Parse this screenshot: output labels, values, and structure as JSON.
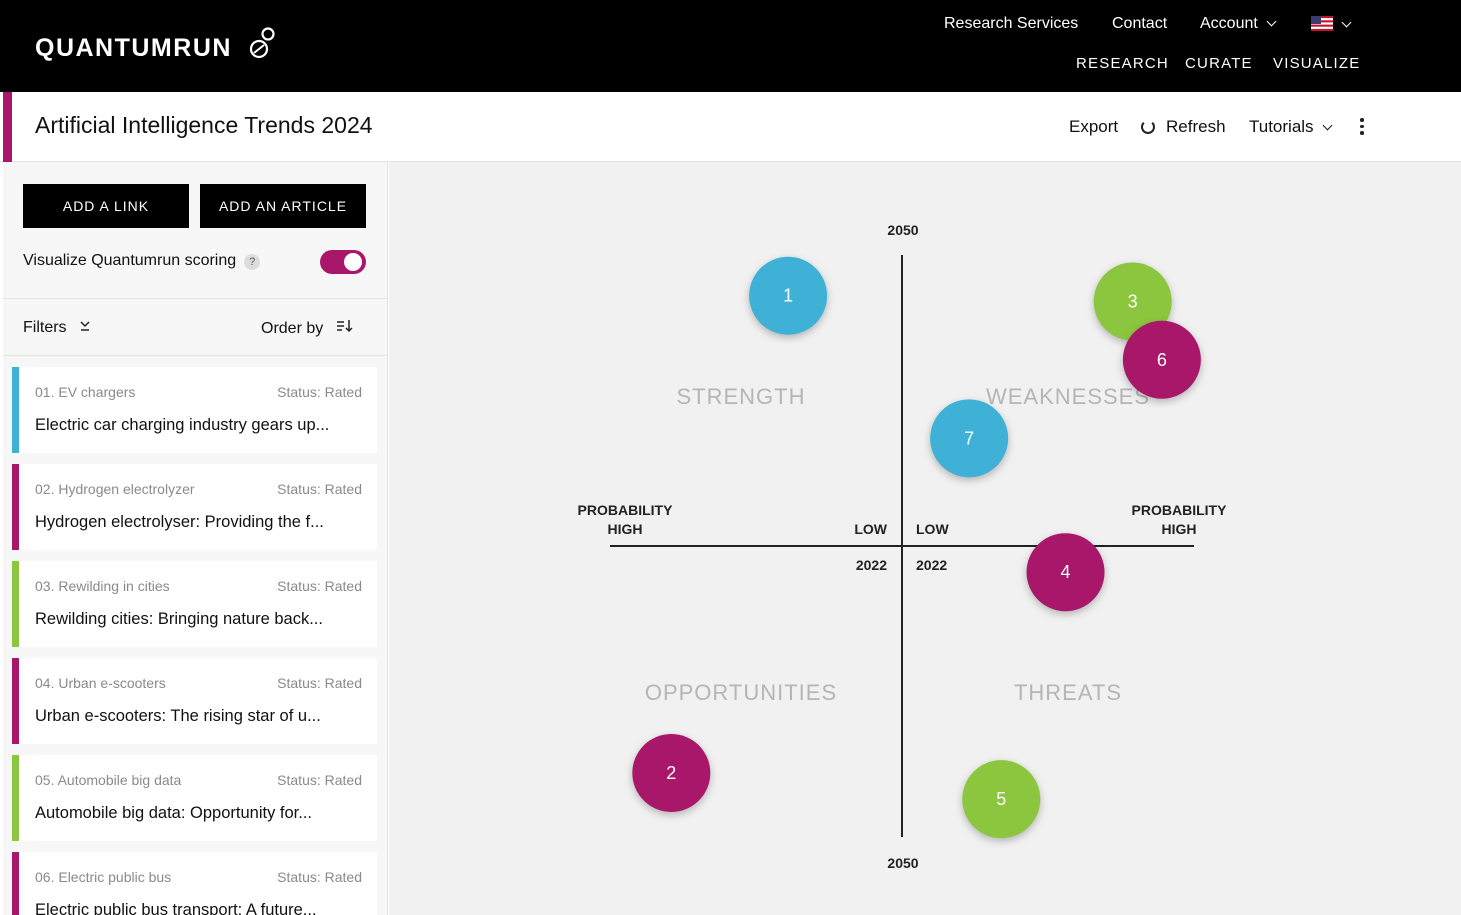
{
  "header": {
    "logo_text": "QUANTUMRUN",
    "nav_top": [
      "Research Services",
      "Contact",
      "Account"
    ],
    "nav_main": [
      "RESEARCH",
      "CURATE",
      "VISUALIZE"
    ],
    "flag_icon": "us-flag-icon"
  },
  "titlebar": {
    "title": "Artificial Intelligence Trends 2024",
    "export_label": "Export",
    "refresh_label": "Refresh",
    "tutorials_label": "Tutorials",
    "accent_color": "#a8176a"
  },
  "sidebar": {
    "add_link_label": "ADD A LINK",
    "add_article_label": "ADD AN ARTICLE",
    "toggle_label": "Visualize Quantumrun scoring",
    "help_label": "?",
    "toggle_on": true,
    "filters_label": "Filters",
    "orderby_label": "Order by",
    "items": [
      {
        "category": "01. EV chargers",
        "status": "Status: Rated",
        "headline": "Electric car charging industry gears up...",
        "color": "#3fb0d6"
      },
      {
        "category": "02. Hydrogen electrolyzer",
        "status": "Status: Rated",
        "headline": "Hydrogen electrolyser: Providing the f...",
        "color": "#a8176a"
      },
      {
        "category": "03. Rewilding in cities",
        "status": "Status: Rated",
        "headline": "Rewilding cities: Bringing nature back...",
        "color": "#8cc63f"
      },
      {
        "category": "04. Urban e-scooters",
        "status": "Status: Rated",
        "headline": "Urban e-scooters: The rising star of u...",
        "color": "#a8176a"
      },
      {
        "category": "05. Automobile big data",
        "status": "Status: Rated",
        "headline": "Automobile big data: Opportunity for...",
        "color": "#8cc63f"
      },
      {
        "category": "06. Electric public bus",
        "status": "Status: Rated",
        "headline": "Electric public bus transport: A future...",
        "color": "#a8176a"
      }
    ]
  },
  "chart_data": {
    "type": "scatter",
    "title": "",
    "quadrants": [
      "STRENGTH",
      "WEAKNESSES",
      "OPPORTUNITIES",
      "THREATS"
    ],
    "axis_labels": {
      "top": "2050",
      "bottom": "2050",
      "left_upper": "PROBABILITY",
      "left_lower": "HIGH",
      "right_upper": "PROBABILITY",
      "right_lower": "HIGH",
      "center_left_low": "LOW",
      "center_right_low": "LOW",
      "center_left_year": "2022",
      "center_right_year": "2022"
    },
    "xlim": [
      -1,
      1
    ],
    "ylim": [
      -1,
      1
    ],
    "points": [
      {
        "label": "1",
        "x": -0.39,
        "y": 0.86,
        "color": "#3fb0d6"
      },
      {
        "label": "3",
        "x": 0.79,
        "y": 0.84,
        "color": "#8cc63f"
      },
      {
        "label": "6",
        "x": 0.89,
        "y": 0.64,
        "color": "#a8176a"
      },
      {
        "label": "7",
        "x": 0.23,
        "y": 0.37,
        "color": "#3fb0d6"
      },
      {
        "label": "4",
        "x": 0.56,
        "y": -0.09,
        "color": "#a8176a"
      },
      {
        "label": "2",
        "x": -0.79,
        "y": -0.78,
        "color": "#a8176a"
      },
      {
        "label": "5",
        "x": 0.34,
        "y": -0.87,
        "color": "#8cc63f"
      }
    ]
  }
}
